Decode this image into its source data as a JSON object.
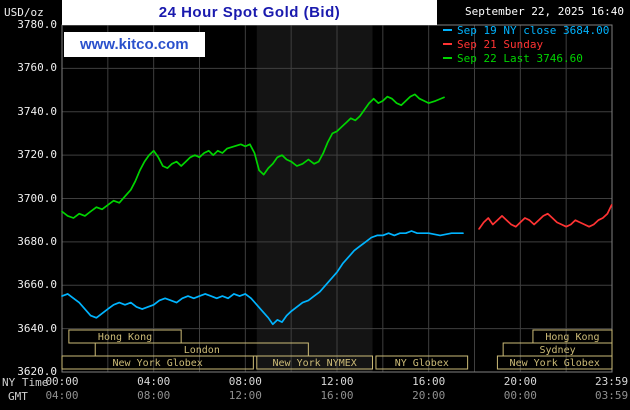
{
  "header": {
    "title": "24 Hour Spot Gold (Bid)",
    "datetime": "September 22, 2025 16:40",
    "units_label": "USD/oz",
    "watermark": "www.kitco.com"
  },
  "legend": [
    {
      "label": "Sep 19 NY close 3684.00",
      "color": "#00b4ff"
    },
    {
      "label": "Sep 21 Sunday",
      "color": "#ff3333"
    },
    {
      "label": "Sep 22 Last 3746.60",
      "color": "#00d500"
    }
  ],
  "colors": {
    "band": "#141414",
    "grid": "#3f3f3f",
    "border": "#7f7f7f",
    "session": "#ccbb77"
  },
  "axes": {
    "ny_label": "NY Time",
    "gmt_label": "GMT",
    "y_ticks": [
      "3780.0",
      "3760.0",
      "3740.0",
      "3720.0",
      "3700.0",
      "3680.0",
      "3660.0",
      "3640.0",
      "3620.0"
    ],
    "ny_ticks": [
      {
        "t": "00:00",
        "h": 0
      },
      {
        "t": "04:00",
        "h": 4
      },
      {
        "t": "08:00",
        "h": 8
      },
      {
        "t": "12:00",
        "h": 12
      },
      {
        "t": "16:00",
        "h": 16
      },
      {
        "t": "20:00",
        "h": 20
      },
      {
        "t": "23:59",
        "h": 23.983
      }
    ],
    "gmt_ticks": [
      {
        "t": "04:00",
        "h": 0
      },
      {
        "t": "08:00",
        "h": 4
      },
      {
        "t": "12:00",
        "h": 8
      },
      {
        "t": "16:00",
        "h": 12
      },
      {
        "t": "20:00",
        "h": 16
      },
      {
        "t": "00:00",
        "h": 20
      },
      {
        "t": "03:59",
        "h": 23.983
      }
    ]
  },
  "sessions": [
    {
      "label": "Hong Kong",
      "row": 0,
      "start": 0.3,
      "end": 5.2
    },
    {
      "label": "Hong Kong",
      "row": 0,
      "start": 20.55,
      "end": 24
    },
    {
      "label": "London",
      "row": 1,
      "start": 1.45,
      "end": 10.75
    },
    {
      "label": "Sydney",
      "row": 1,
      "start": 19.25,
      "end": 24
    },
    {
      "label": "New York Globex",
      "row": 2,
      "start": 0,
      "end": 8.35
    },
    {
      "label": "New York NYMEX",
      "row": 2,
      "start": 8.5,
      "end": 13.55
    },
    {
      "label": "NY Globex",
      "row": 2,
      "start": 13.7,
      "end": 17.7
    },
    {
      "label": "New York Globex",
      "row": 2,
      "start": 19.0,
      "end": 24
    }
  ],
  "chart_data": {
    "type": "line",
    "title": "24 Hour Spot Gold (Bid)",
    "xlabel": "NY Time (hours, 00:00-23:59)",
    "ylabel": "USD/oz",
    "xlim": [
      0,
      24
    ],
    "ylim": [
      3620,
      3780
    ],
    "x_grid_step": 2,
    "y_grid_step": 20,
    "legend_position": "top-right",
    "grid": true,
    "highlight_band": {
      "start": 8.5,
      "end": 13.55
    },
    "series": [
      {
        "id": "sep19",
        "name": "Sep 19 NY close 3684.00",
        "color": "#00b4ff",
        "points": [
          [
            0,
            3655
          ],
          [
            0.25,
            3656
          ],
          [
            0.5,
            3654
          ],
          [
            0.75,
            3652
          ],
          [
            1,
            3649
          ],
          [
            1.25,
            3646
          ],
          [
            1.5,
            3645
          ],
          [
            1.75,
            3647
          ],
          [
            2,
            3649
          ],
          [
            2.25,
            3651
          ],
          [
            2.5,
            3652
          ],
          [
            2.75,
            3651
          ],
          [
            3,
            3652
          ],
          [
            3.25,
            3650
          ],
          [
            3.5,
            3649
          ],
          [
            3.75,
            3650
          ],
          [
            4,
            3651
          ],
          [
            4.25,
            3653
          ],
          [
            4.5,
            3654
          ],
          [
            4.75,
            3653
          ],
          [
            5,
            3652
          ],
          [
            5.25,
            3654
          ],
          [
            5.5,
            3655
          ],
          [
            5.75,
            3654
          ],
          [
            6,
            3655
          ],
          [
            6.25,
            3656
          ],
          [
            6.5,
            3655
          ],
          [
            6.75,
            3654
          ],
          [
            7,
            3655
          ],
          [
            7.25,
            3654
          ],
          [
            7.5,
            3656
          ],
          [
            7.75,
            3655
          ],
          [
            8,
            3656
          ],
          [
            8.25,
            3654
          ],
          [
            8.5,
            3651
          ],
          [
            8.75,
            3648
          ],
          [
            9,
            3645
          ],
          [
            9.2,
            3642
          ],
          [
            9.4,
            3644
          ],
          [
            9.6,
            3643
          ],
          [
            9.8,
            3646
          ],
          [
            10,
            3648
          ],
          [
            10.25,
            3650
          ],
          [
            10.5,
            3652
          ],
          [
            10.75,
            3653
          ],
          [
            11,
            3655
          ],
          [
            11.25,
            3657
          ],
          [
            11.5,
            3660
          ],
          [
            11.75,
            3663
          ],
          [
            12,
            3666
          ],
          [
            12.25,
            3670
          ],
          [
            12.5,
            3673
          ],
          [
            12.75,
            3676
          ],
          [
            13,
            3678
          ],
          [
            13.25,
            3680
          ],
          [
            13.5,
            3682
          ],
          [
            13.75,
            3683
          ],
          [
            14,
            3683
          ],
          [
            14.25,
            3684
          ],
          [
            14.5,
            3683
          ],
          [
            14.75,
            3684
          ],
          [
            15,
            3684
          ],
          [
            15.25,
            3685
          ],
          [
            15.5,
            3684
          ],
          [
            15.75,
            3684
          ],
          [
            16,
            3684
          ],
          [
            16.5,
            3683
          ],
          [
            17,
            3684
          ],
          [
            17.5,
            3684
          ]
        ]
      },
      {
        "id": "sep21",
        "name": "Sep 21 Sunday",
        "color": "#ff3333",
        "points": [
          [
            18.2,
            3686
          ],
          [
            18.4,
            3689
          ],
          [
            18.6,
            3691
          ],
          [
            18.8,
            3688
          ],
          [
            19,
            3690
          ],
          [
            19.2,
            3692
          ],
          [
            19.4,
            3690
          ],
          [
            19.6,
            3688
          ],
          [
            19.8,
            3687
          ],
          [
            20,
            3689
          ],
          [
            20.2,
            3691
          ],
          [
            20.4,
            3690
          ],
          [
            20.6,
            3688
          ],
          [
            20.8,
            3690
          ],
          [
            21,
            3692
          ],
          [
            21.2,
            3693
          ],
          [
            21.4,
            3691
          ],
          [
            21.6,
            3689
          ],
          [
            21.8,
            3688
          ],
          [
            22,
            3687
          ],
          [
            22.2,
            3688
          ],
          [
            22.4,
            3690
          ],
          [
            22.6,
            3689
          ],
          [
            22.8,
            3688
          ],
          [
            23,
            3687
          ],
          [
            23.2,
            3688
          ],
          [
            23.4,
            3690
          ],
          [
            23.6,
            3691
          ],
          [
            23.8,
            3693
          ],
          [
            23.983,
            3697
          ]
        ]
      },
      {
        "id": "sep22",
        "name": "Sep 22 Last 3746.60",
        "color": "#00d500",
        "points": [
          [
            0,
            3694
          ],
          [
            0.25,
            3692
          ],
          [
            0.5,
            3691
          ],
          [
            0.75,
            3693
          ],
          [
            1,
            3692
          ],
          [
            1.25,
            3694
          ],
          [
            1.5,
            3696
          ],
          [
            1.75,
            3695
          ],
          [
            2,
            3697
          ],
          [
            2.25,
            3699
          ],
          [
            2.5,
            3698
          ],
          [
            2.75,
            3701
          ],
          [
            3,
            3704
          ],
          [
            3.2,
            3708
          ],
          [
            3.4,
            3713
          ],
          [
            3.6,
            3717
          ],
          [
            3.8,
            3720
          ],
          [
            4,
            3722
          ],
          [
            4.2,
            3719
          ],
          [
            4.4,
            3715
          ],
          [
            4.6,
            3714
          ],
          [
            4.8,
            3716
          ],
          [
            5,
            3717
          ],
          [
            5.2,
            3715
          ],
          [
            5.4,
            3717
          ],
          [
            5.6,
            3719
          ],
          [
            5.8,
            3720
          ],
          [
            6,
            3719
          ],
          [
            6.2,
            3721
          ],
          [
            6.4,
            3722
          ],
          [
            6.6,
            3720
          ],
          [
            6.8,
            3722
          ],
          [
            7,
            3721
          ],
          [
            7.2,
            3723
          ],
          [
            7.5,
            3724
          ],
          [
            7.8,
            3725
          ],
          [
            8,
            3724
          ],
          [
            8.2,
            3725
          ],
          [
            8.4,
            3721
          ],
          [
            8.6,
            3713
          ],
          [
            8.8,
            3711
          ],
          [
            9,
            3714
          ],
          [
            9.2,
            3716
          ],
          [
            9.4,
            3719
          ],
          [
            9.6,
            3720
          ],
          [
            9.8,
            3718
          ],
          [
            10,
            3717
          ],
          [
            10.25,
            3715
          ],
          [
            10.5,
            3716
          ],
          [
            10.75,
            3718
          ],
          [
            11,
            3716
          ],
          [
            11.2,
            3717
          ],
          [
            11.4,
            3721
          ],
          [
            11.6,
            3726
          ],
          [
            11.8,
            3730
          ],
          [
            12,
            3731
          ],
          [
            12.2,
            3733
          ],
          [
            12.4,
            3735
          ],
          [
            12.6,
            3737
          ],
          [
            12.8,
            3736
          ],
          [
            13,
            3738
          ],
          [
            13.2,
            3741
          ],
          [
            13.4,
            3744
          ],
          [
            13.6,
            3746
          ],
          [
            13.8,
            3744
          ],
          [
            14,
            3745
          ],
          [
            14.2,
            3747
          ],
          [
            14.4,
            3746
          ],
          [
            14.6,
            3744
          ],
          [
            14.8,
            3743
          ],
          [
            15,
            3745
          ],
          [
            15.2,
            3747
          ],
          [
            15.4,
            3748
          ],
          [
            15.6,
            3746
          ],
          [
            15.8,
            3745
          ],
          [
            16,
            3744
          ],
          [
            16.3,
            3745
          ],
          [
            16.67,
            3746.6
          ]
        ]
      }
    ]
  }
}
